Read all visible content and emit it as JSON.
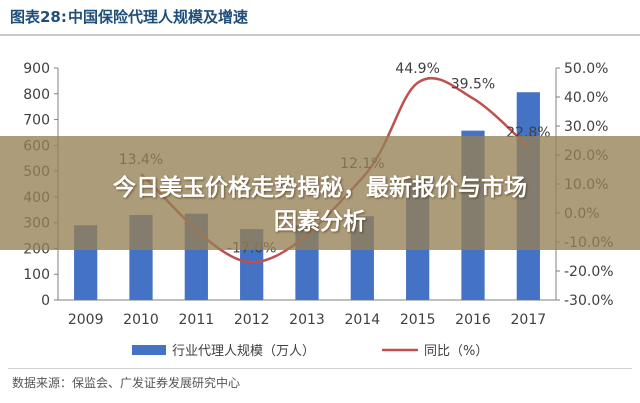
{
  "figure": {
    "number": "图表28:",
    "title": "中国保险代理人规模及增速"
  },
  "banner": {
    "line1": "今日美玉价格走势揭秘，最新报价与市场",
    "line2": "因素分析"
  },
  "source": "数据来源：保监会、广发证券发展研究中心",
  "colors": {
    "bar": "#4472c4",
    "line": "#c0504d",
    "axis": "#808080",
    "tick_text": "#404040"
  },
  "chart_data": {
    "type": "bar",
    "categories": [
      "2009",
      "2010",
      "2011",
      "2012",
      "2013",
      "2014",
      "2015",
      "2016",
      "2017"
    ],
    "series": [
      {
        "name": "行业代理人规模（万人）",
        "type": "bar",
        "axis": "left",
        "values": [
          290,
          330,
          335,
          275,
          290,
          325,
          470,
          657,
          806
        ]
      },
      {
        "name": "同比（%）",
        "type": "line",
        "axis": "right",
        "values": [
          null,
          13.4,
          null,
          -17.0,
          null,
          12.1,
          44.9,
          39.5,
          22.8
        ]
      }
    ],
    "data_labels": [
      "13.4%",
      "-17.0%",
      "12.1%",
      "44.9%",
      "39.5%",
      "22.8%"
    ],
    "data_label_indices": [
      1,
      3,
      5,
      6,
      7,
      8
    ],
    "y_left": {
      "range": [
        0,
        900
      ],
      "ticks": [
        "0",
        "100",
        "200",
        "300",
        "400",
        "500",
        "600",
        "700",
        "800",
        "900"
      ]
    },
    "y_right": {
      "range": [
        -30,
        50
      ],
      "ticks": [
        "-30.0%",
        "-20.0%",
        "-10.0%",
        "0.0%",
        "10.0%",
        "20.0%",
        "30.0%",
        "40.0%",
        "50.0%"
      ]
    },
    "legend_position": "bottom",
    "grid": false
  }
}
